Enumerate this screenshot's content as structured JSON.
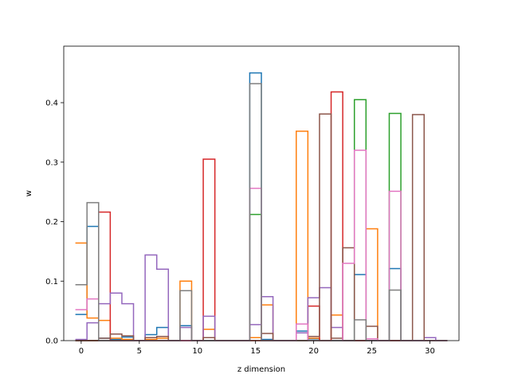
{
  "chart_data": {
    "type": "step",
    "title": "",
    "xlabel": "z dimension",
    "ylabel": "w",
    "xlim": [
      -1.5,
      32.5
    ],
    "ylim": [
      0,
      0.495
    ],
    "xticks": [
      0,
      5,
      10,
      15,
      20,
      25,
      30
    ],
    "yticks": [
      0.0,
      0.1,
      0.2,
      0.3,
      0.4
    ],
    "grid": false,
    "legend": "none",
    "series": [
      {
        "color": "#1f77b4",
        "points": [
          [
            0,
            0.044
          ],
          [
            1,
            0.192
          ],
          [
            2,
            0.004
          ],
          [
            3,
            0.002
          ],
          [
            4,
            0.006
          ],
          [
            5,
            0.0
          ],
          [
            6,
            0.01
          ],
          [
            7,
            0.022
          ],
          [
            8,
            0.0
          ],
          [
            9,
            0.025
          ],
          [
            10,
            0.0
          ],
          [
            11,
            0.0
          ],
          [
            12,
            0.0
          ],
          [
            13,
            0.0
          ],
          [
            14,
            0.0
          ],
          [
            15,
            0.45
          ],
          [
            16,
            0.002
          ],
          [
            17,
            0.0
          ],
          [
            18,
            0.0
          ],
          [
            19,
            0.016
          ],
          [
            20,
            0.003
          ],
          [
            21,
            0.0
          ],
          [
            22,
            0.0
          ],
          [
            23,
            0.0
          ],
          [
            24,
            0.111
          ],
          [
            25,
            0.0
          ],
          [
            26,
            0.0
          ],
          [
            27,
            0.121
          ],
          [
            28,
            0.0
          ],
          [
            29,
            0.0
          ],
          [
            30,
            0.0
          ],
          [
            31,
            0.0
          ]
        ]
      },
      {
        "color": "#ff7f0e",
        "points": [
          [
            0,
            0.164
          ],
          [
            1,
            0.038
          ],
          [
            2,
            0.034
          ],
          [
            3,
            0.004
          ],
          [
            4,
            0.002
          ],
          [
            5,
            0.0
          ],
          [
            6,
            0.002
          ],
          [
            7,
            0.004
          ],
          [
            8,
            0.0
          ],
          [
            9,
            0.1
          ],
          [
            10,
            0.0
          ],
          [
            11,
            0.019
          ],
          [
            12,
            0.0
          ],
          [
            13,
            0.0
          ],
          [
            14,
            0.0
          ],
          [
            15,
            0.005
          ],
          [
            16,
            0.06
          ],
          [
            17,
            0.0
          ],
          [
            18,
            0.0
          ],
          [
            19,
            0.352
          ],
          [
            20,
            0.004
          ],
          [
            21,
            0.0
          ],
          [
            22,
            0.043
          ],
          [
            23,
            0.0
          ],
          [
            24,
            0.0
          ],
          [
            25,
            0.188
          ],
          [
            26,
            0.0
          ],
          [
            27,
            0.0
          ],
          [
            28,
            0.0
          ],
          [
            29,
            0.0
          ],
          [
            30,
            0.0
          ],
          [
            31,
            0.0
          ]
        ]
      },
      {
        "color": "#2ca02c",
        "points": [
          [
            0,
            0.0
          ],
          [
            1,
            0.0
          ],
          [
            2,
            0.0
          ],
          [
            3,
            0.0
          ],
          [
            4,
            0.0
          ],
          [
            5,
            0.0
          ],
          [
            6,
            0.0
          ],
          [
            7,
            0.0
          ],
          [
            8,
            0.0
          ],
          [
            9,
            0.0
          ],
          [
            10,
            0.0
          ],
          [
            11,
            0.0
          ],
          [
            12,
            0.0
          ],
          [
            13,
            0.0
          ],
          [
            14,
            0.0
          ],
          [
            15,
            0.212
          ],
          [
            16,
            0.0
          ],
          [
            17,
            0.0
          ],
          [
            18,
            0.0
          ],
          [
            19,
            0.0
          ],
          [
            20,
            0.0
          ],
          [
            21,
            0.0
          ],
          [
            22,
            0.0
          ],
          [
            23,
            0.0
          ],
          [
            24,
            0.405
          ],
          [
            25,
            0.0
          ],
          [
            26,
            0.0
          ],
          [
            27,
            0.382
          ],
          [
            28,
            0.0
          ],
          [
            29,
            0.0
          ],
          [
            30,
            0.0
          ],
          [
            31,
            0.0
          ]
        ]
      },
      {
        "color": "#d62728",
        "points": [
          [
            0,
            0.0
          ],
          [
            1,
            0.0
          ],
          [
            2,
            0.216
          ],
          [
            3,
            0.0
          ],
          [
            4,
            0.0
          ],
          [
            5,
            0.0
          ],
          [
            6,
            0.0
          ],
          [
            7,
            0.0
          ],
          [
            8,
            0.0
          ],
          [
            9,
            0.0
          ],
          [
            10,
            0.0
          ],
          [
            11,
            0.305
          ],
          [
            12,
            0.0
          ],
          [
            13,
            0.0
          ],
          [
            14,
            0.0
          ],
          [
            15,
            0.0
          ],
          [
            16,
            0.0
          ],
          [
            17,
            0.0
          ],
          [
            18,
            0.0
          ],
          [
            19,
            0.0
          ],
          [
            20,
            0.058
          ],
          [
            21,
            0.0
          ],
          [
            22,
            0.418
          ],
          [
            23,
            0.0
          ],
          [
            24,
            0.0
          ],
          [
            25,
            0.0
          ],
          [
            26,
            0.0
          ],
          [
            27,
            0.0
          ],
          [
            28,
            0.0
          ],
          [
            29,
            0.0
          ],
          [
            30,
            0.0
          ],
          [
            31,
            0.0
          ]
        ]
      },
      {
        "color": "#9467bd",
        "points": [
          [
            0,
            0.002
          ],
          [
            1,
            0.03
          ],
          [
            2,
            0.062
          ],
          [
            3,
            0.08
          ],
          [
            4,
            0.062
          ],
          [
            5,
            0.0
          ],
          [
            6,
            0.144
          ],
          [
            7,
            0.12
          ],
          [
            8,
            0.0
          ],
          [
            9,
            0.022
          ],
          [
            10,
            0.0
          ],
          [
            11,
            0.041
          ],
          [
            12,
            0.0
          ],
          [
            13,
            0.0
          ],
          [
            14,
            0.0
          ],
          [
            15,
            0.027
          ],
          [
            16,
            0.074
          ],
          [
            17,
            0.0
          ],
          [
            18,
            0.0
          ],
          [
            19,
            0.013
          ],
          [
            20,
            0.072
          ],
          [
            21,
            0.089
          ],
          [
            22,
            0.022
          ],
          [
            23,
            0.0
          ],
          [
            24,
            0.0
          ],
          [
            25,
            0.0
          ],
          [
            26,
            0.0
          ],
          [
            27,
            0.0
          ],
          [
            28,
            0.0
          ],
          [
            29,
            0.0
          ],
          [
            30,
            0.005
          ],
          [
            31,
            0.0
          ]
        ]
      },
      {
        "color": "#8c564b",
        "points": [
          [
            0,
            0.0
          ],
          [
            1,
            0.0
          ],
          [
            2,
            0.004
          ],
          [
            3,
            0.011
          ],
          [
            4,
            0.008
          ],
          [
            5,
            0.0
          ],
          [
            6,
            0.005
          ],
          [
            7,
            0.007
          ],
          [
            8,
            0.0
          ],
          [
            9,
            0.0
          ],
          [
            10,
            0.0
          ],
          [
            11,
            0.005
          ],
          [
            12,
            0.0
          ],
          [
            13,
            0.0
          ],
          [
            14,
            0.0
          ],
          [
            15,
            0.0
          ],
          [
            16,
            0.012
          ],
          [
            17,
            0.0
          ],
          [
            18,
            0.0
          ],
          [
            19,
            0.0
          ],
          [
            20,
            0.007
          ],
          [
            21,
            0.381
          ],
          [
            22,
            0.004
          ],
          [
            23,
            0.156
          ],
          [
            24,
            0.0
          ],
          [
            25,
            0.024
          ],
          [
            26,
            0.0
          ],
          [
            27,
            0.0
          ],
          [
            28,
            0.0
          ],
          [
            29,
            0.38
          ],
          [
            30,
            0.0
          ],
          [
            31,
            0.0
          ]
        ]
      },
      {
        "color": "#e377c2",
        "points": [
          [
            0,
            0.052
          ],
          [
            1,
            0.07
          ],
          [
            2,
            0.0
          ],
          [
            3,
            0.0
          ],
          [
            4,
            0.0
          ],
          [
            5,
            0.0
          ],
          [
            6,
            0.0
          ],
          [
            7,
            0.0
          ],
          [
            8,
            0.0
          ],
          [
            9,
            0.0
          ],
          [
            10,
            0.0
          ],
          [
            11,
            0.0
          ],
          [
            12,
            0.0
          ],
          [
            13,
            0.0
          ],
          [
            14,
            0.0
          ],
          [
            15,
            0.256
          ],
          [
            16,
            0.0
          ],
          [
            17,
            0.0
          ],
          [
            18,
            0.0
          ],
          [
            19,
            0.028
          ],
          [
            20,
            0.0
          ],
          [
            21,
            0.0
          ],
          [
            22,
            0.0
          ],
          [
            23,
            0.13
          ],
          [
            24,
            0.32
          ],
          [
            25,
            0.003
          ],
          [
            26,
            0.0
          ],
          [
            27,
            0.251
          ],
          [
            28,
            0.0
          ],
          [
            29,
            0.0
          ],
          [
            30,
            0.0
          ],
          [
            31,
            0.0
          ]
        ]
      },
      {
        "color": "#7f7f7f",
        "points": [
          [
            0,
            0.094
          ],
          [
            1,
            0.232
          ],
          [
            2,
            0.0
          ],
          [
            3,
            0.0
          ],
          [
            4,
            0.0
          ],
          [
            5,
            0.0
          ],
          [
            6,
            0.0
          ],
          [
            7,
            0.0
          ],
          [
            8,
            0.0
          ],
          [
            9,
            0.084
          ],
          [
            10,
            0.0
          ],
          [
            11,
            0.0
          ],
          [
            12,
            0.0
          ],
          [
            13,
            0.0
          ],
          [
            14,
            0.0
          ],
          [
            15,
            0.432
          ],
          [
            16,
            0.0
          ],
          [
            17,
            0.0
          ],
          [
            18,
            0.0
          ],
          [
            19,
            0.0
          ],
          [
            20,
            0.0
          ],
          [
            21,
            0.0
          ],
          [
            22,
            0.0
          ],
          [
            23,
            0.0
          ],
          [
            24,
            0.035
          ],
          [
            25,
            0.0
          ],
          [
            26,
            0.0
          ],
          [
            27,
            0.085
          ],
          [
            28,
            0.0
          ],
          [
            29,
            0.0
          ],
          [
            30,
            0.0
          ],
          [
            31,
            0.0
          ]
        ]
      }
    ]
  }
}
